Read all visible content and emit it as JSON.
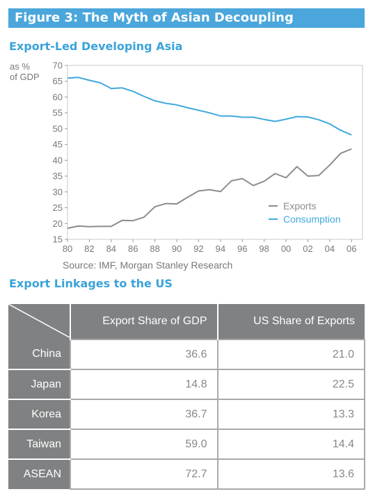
{
  "figure_title": "Figure 3: The Myth of Asian Decoupling",
  "chart_section_title": "Export-Led Developing Asia",
  "table_section_title": "Export Linkages to the US",
  "chart_data": {
    "type": "line",
    "ylabel": [
      "as %",
      "of GDP"
    ],
    "ylim": [
      15,
      70
    ],
    "yticks": [
      15,
      20,
      25,
      30,
      35,
      40,
      45,
      50,
      55,
      60,
      65,
      70
    ],
    "xlim": [
      1980,
      2007
    ],
    "xticks": [
      {
        "value": 1980,
        "label": "80"
      },
      {
        "value": 1982,
        "label": "82"
      },
      {
        "value": 1984,
        "label": "84"
      },
      {
        "value": 1986,
        "label": "86"
      },
      {
        "value": 1988,
        "label": "88"
      },
      {
        "value": 1990,
        "label": "90"
      },
      {
        "value": 1992,
        "label": "92"
      },
      {
        "value": 1994,
        "label": "94"
      },
      {
        "value": 1996,
        "label": "96"
      },
      {
        "value": 1998,
        "label": "98"
      },
      {
        "value": 2000,
        "label": "00"
      },
      {
        "value": 2002,
        "label": "02"
      },
      {
        "value": 2004,
        "label": "04"
      },
      {
        "value": 2006,
        "label": "06"
      }
    ],
    "x": [
      1980,
      1981,
      1982,
      1983,
      1984,
      1985,
      1986,
      1987,
      1988,
      1989,
      1990,
      1991,
      1992,
      1993,
      1994,
      1995,
      1996,
      1997,
      1998,
      1999,
      2000,
      2001,
      2002,
      2003,
      2004,
      2005,
      2006
    ],
    "series": [
      {
        "name": "Exports",
        "color": "#8c8c8c",
        "values": [
          18.5,
          19.2,
          19.0,
          19.1,
          19.1,
          21.0,
          20.9,
          22.0,
          25.3,
          26.3,
          26.2,
          28.3,
          30.3,
          30.7,
          30.1,
          33.5,
          34.2,
          32.0,
          33.4,
          35.8,
          34.5,
          38.0,
          35.0,
          35.2,
          38.5,
          42.2,
          43.6
        ]
      },
      {
        "name": "Consumption",
        "color": "#3fa9dd",
        "values": [
          66.0,
          66.2,
          65.3,
          64.5,
          62.7,
          62.9,
          61.8,
          60.2,
          58.8,
          58.0,
          57.5,
          56.6,
          55.8,
          55.0,
          54.0,
          54.0,
          53.6,
          53.6,
          52.9,
          52.3,
          53.0,
          53.8,
          53.7,
          52.8,
          51.5,
          49.5,
          48.0
        ]
      }
    ],
    "legend_position": "bottom-right",
    "source_text": "Source: IMF, Morgan Stanley Research"
  },
  "table": {
    "headers": [
      "Export Share of GDP",
      "US Share of Exports"
    ],
    "rows": [
      {
        "name": "China",
        "gdp": "36.6",
        "us": "21.0"
      },
      {
        "name": "Japan",
        "gdp": "14.8",
        "us": "22.5"
      },
      {
        "name": "Korea",
        "gdp": "36.7",
        "us": "13.3"
      },
      {
        "name": "Taiwan",
        "gdp": "59.0",
        "us": "14.4"
      },
      {
        "name": "ASEAN",
        "gdp": "72.7",
        "us": "13.6"
      }
    ]
  }
}
